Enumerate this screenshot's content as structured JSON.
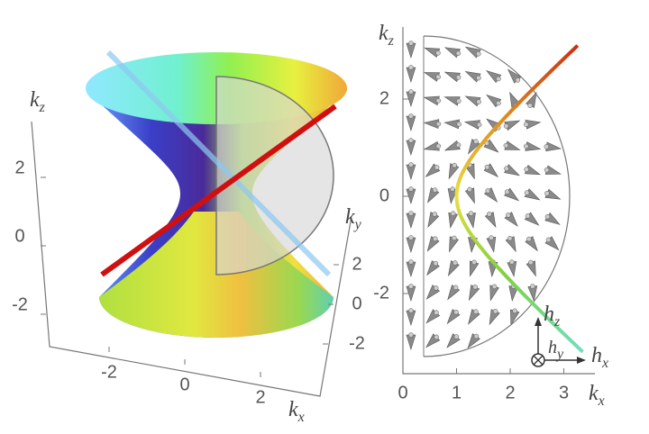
{
  "left_panel": {
    "axis_labels": {
      "kz": {
        "base": "k",
        "sub": "z"
      },
      "ky": {
        "base": "k",
        "sub": "y"
      },
      "kx": {
        "base": "k",
        "sub": "x"
      }
    },
    "z_ticks": [
      2,
      0,
      -2
    ],
    "x_ticks": [
      -2,
      0,
      2
    ],
    "y_ticks": [
      2,
      0,
      -2
    ]
  },
  "right_panel": {
    "axis_labels": {
      "kz": {
        "base": "k",
        "sub": "z"
      },
      "kx": {
        "base": "k",
        "sub": "x"
      }
    },
    "kz_ticks": [
      2,
      0,
      -2
    ],
    "kx_ticks": [
      0,
      1,
      2,
      3
    ],
    "inset_labels": {
      "hz": {
        "base": "h",
        "sub": "z"
      },
      "hy": {
        "base": "h",
        "sub": "y"
      },
      "hx": {
        "base": "h",
        "sub": "x"
      }
    }
  }
}
